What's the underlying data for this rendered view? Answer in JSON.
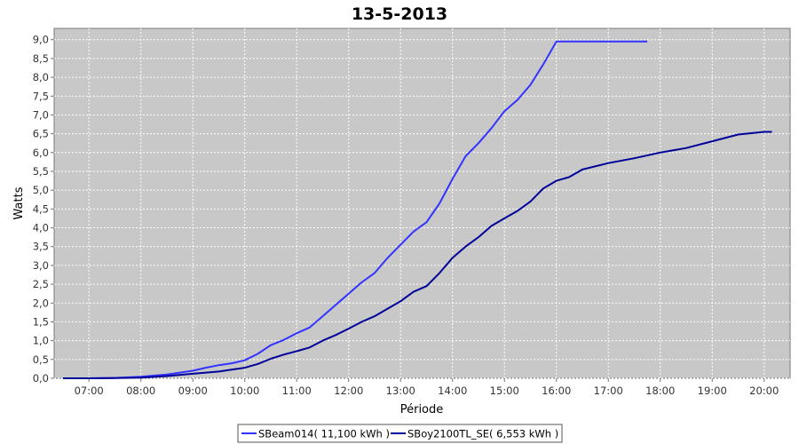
{
  "chart_data": {
    "type": "line",
    "title": "13-5-2013",
    "xlabel": "Période",
    "ylabel": "Watts",
    "x_ticks": [
      "07:00",
      "08:00",
      "09:00",
      "10:00",
      "11:00",
      "12:00",
      "13:00",
      "14:00",
      "15:00",
      "16:00",
      "17:00",
      "18:00",
      "19:00",
      "20:00"
    ],
    "y_ticks": [
      "0,0",
      "0,5",
      "1,0",
      "1,5",
      "2,0",
      "2,5",
      "3,0",
      "3,5",
      "4,0",
      "4,5",
      "5,0",
      "5,5",
      "6,0",
      "6,5",
      "7,0",
      "7,5",
      "8,0",
      "8,5",
      "9,0"
    ],
    "xlim": [
      6.33,
      20.5
    ],
    "ylim": [
      0,
      9.3
    ],
    "grid": true,
    "legend_position": "bottom-center",
    "series": [
      {
        "name": "SBeam014( 11,100 kWh )",
        "color": "#3333ff",
        "x": [
          6.5,
          7.0,
          7.5,
          8.0,
          8.5,
          9.0,
          9.25,
          9.5,
          9.75,
          10.0,
          10.25,
          10.5,
          10.75,
          11.0,
          11.25,
          11.5,
          11.75,
          12.0,
          12.25,
          12.5,
          12.75,
          13.0,
          13.25,
          13.5,
          13.75,
          14.0,
          14.25,
          14.5,
          14.75,
          15.0,
          15.25,
          15.5,
          15.75,
          16.0,
          16.5,
          17.0,
          17.5,
          17.75
        ],
        "y": [
          0,
          0,
          0.01,
          0.04,
          0.1,
          0.2,
          0.28,
          0.35,
          0.4,
          0.48,
          0.65,
          0.88,
          1.02,
          1.2,
          1.35,
          1.65,
          1.95,
          2.25,
          2.55,
          2.8,
          3.2,
          3.55,
          3.9,
          4.15,
          4.65,
          5.3,
          5.9,
          6.25,
          6.65,
          7.1,
          7.4,
          7.8,
          8.35,
          8.95,
          8.95,
          8.95,
          8.95,
          8.95
        ]
      },
      {
        "name": "SBoy2100TL_SE( 6,553 kWh )",
        "color": "#000099",
        "x": [
          6.5,
          7.0,
          7.5,
          8.0,
          8.5,
          9.0,
          9.5,
          10.0,
          10.25,
          10.5,
          10.75,
          11.0,
          11.25,
          11.5,
          11.75,
          12.0,
          12.25,
          12.5,
          12.75,
          13.0,
          13.25,
          13.5,
          13.75,
          14.0,
          14.25,
          14.5,
          14.75,
          15.0,
          15.25,
          15.5,
          15.75,
          16.0,
          16.25,
          16.5,
          17.0,
          17.5,
          18.0,
          18.5,
          19.0,
          19.5,
          20.0,
          20.15
        ],
        "y": [
          0,
          0,
          0.005,
          0.02,
          0.06,
          0.12,
          0.18,
          0.28,
          0.38,
          0.52,
          0.63,
          0.72,
          0.82,
          1.0,
          1.15,
          1.32,
          1.5,
          1.65,
          1.85,
          2.05,
          2.3,
          2.45,
          2.8,
          3.2,
          3.5,
          3.75,
          4.05,
          4.25,
          4.45,
          4.7,
          5.05,
          5.25,
          5.35,
          5.55,
          5.72,
          5.85,
          6.0,
          6.12,
          6.3,
          6.48,
          6.55,
          6.55
        ]
      }
    ]
  }
}
